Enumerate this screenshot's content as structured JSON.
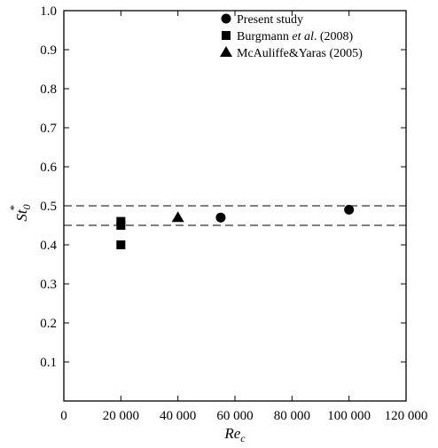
{
  "chart_data": {
    "type": "scatter",
    "xlabel_main": "Re",
    "xlabel_sub": "c",
    "ylabel_main": "St",
    "ylabel_sub": "0",
    "ylabel_sup": "*",
    "xlim": [
      0,
      120000
    ],
    "ylim": [
      0,
      1.0
    ],
    "x_ticks": [
      0,
      20000,
      40000,
      60000,
      80000,
      100000,
      120000
    ],
    "x_tick_labels": [
      "0",
      "20 000",
      "40 000",
      "60 000",
      "80 000",
      "100 000",
      "120 000"
    ],
    "y_ticks": [
      0.1,
      0.2,
      0.3,
      0.4,
      0.5,
      0.6,
      0.7,
      0.8,
      0.9,
      1.0
    ],
    "y_tick_labels": [
      "0.1",
      "0.2",
      "0.3",
      "0.4",
      "0.5",
      "0.6",
      "0.7",
      "0.8",
      "0.9",
      "1.0"
    ],
    "reference_lines": [
      0.45,
      0.5
    ],
    "grid": false,
    "legend_placement": "top-right",
    "series": [
      {
        "name": "Present study",
        "name_parts": [
          {
            "text": "Present study",
            "italic": false
          }
        ],
        "marker": "circle",
        "points": [
          [
            55000,
            0.47
          ],
          [
            100000,
            0.49
          ]
        ]
      },
      {
        "name": "Burgmann et al. (2008)",
        "name_parts": [
          {
            "text": "Burgmann ",
            "italic": false
          },
          {
            "text": "et al",
            "italic": true
          },
          {
            "text": ". (2008)",
            "italic": false
          }
        ],
        "marker": "square",
        "points": [
          [
            20000,
            0.46
          ],
          [
            20000,
            0.45
          ],
          [
            20000,
            0.4
          ]
        ]
      },
      {
        "name": "McAuliffe&Yaras (2005)",
        "name_parts": [
          {
            "text": "McAuliffe&Yaras (2005)",
            "italic": false
          }
        ],
        "marker": "triangle",
        "points": [
          [
            40000,
            0.47
          ]
        ]
      }
    ],
    "colors": {
      "marker": "#000000",
      "axis": "#000000"
    }
  }
}
